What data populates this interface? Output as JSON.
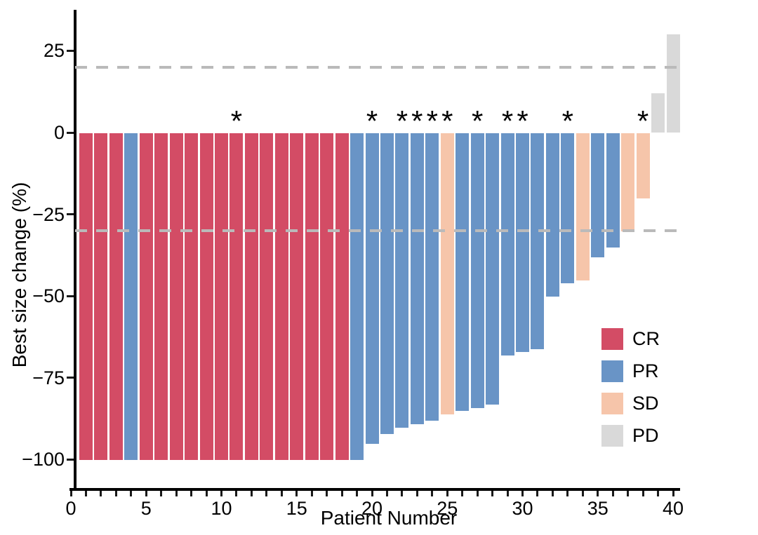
{
  "chart_data": {
    "type": "bar",
    "subtype": "waterfall",
    "title": "",
    "xlabel": "Patient Number",
    "ylabel": "Best size change (%)",
    "xlim": [
      0,
      41
    ],
    "ylim": [
      -110,
      37
    ],
    "grid": "off",
    "x_ticks": [
      0,
      5,
      10,
      15,
      20,
      25,
      30,
      35,
      40
    ],
    "x_minor_tick_step": 1,
    "y_ticks": [
      {
        "value": 25,
        "label": "25"
      },
      {
        "value": 0,
        "label": "0"
      },
      {
        "value": -25,
        "label": "−25"
      },
      {
        "value": -50,
        "label": "−50"
      },
      {
        "value": -75,
        "label": "−75"
      },
      {
        "value": -100,
        "label": "−100"
      }
    ],
    "reference_lines": [
      {
        "y": 20,
        "style": "dashed",
        "color": "#BABABA"
      },
      {
        "y": -30,
        "style": "dashed",
        "color": "#BABABA"
      }
    ],
    "legend": {
      "position": "inside-bottom-right",
      "entries": [
        {
          "label": "CR",
          "color": "#D34C65"
        },
        {
          "label": "PR",
          "color": "#6994C6"
        },
        {
          "label": "SD",
          "color": "#F6C5AA"
        },
        {
          "label": "PD",
          "color": "#D9D9D9"
        }
      ]
    },
    "annotation_symbol": "*",
    "annotation_color": "#000000",
    "patients": [
      {
        "number": 1,
        "value": -100,
        "response": "CR",
        "starred": false
      },
      {
        "number": 2,
        "value": -100,
        "response": "CR",
        "starred": false
      },
      {
        "number": 3,
        "value": -100,
        "response": "CR",
        "starred": false
      },
      {
        "number": 4,
        "value": -100,
        "response": "PR",
        "starred": false
      },
      {
        "number": 5,
        "value": -100,
        "response": "CR",
        "starred": false
      },
      {
        "number": 6,
        "value": -100,
        "response": "CR",
        "starred": false
      },
      {
        "number": 7,
        "value": -100,
        "response": "CR",
        "starred": false
      },
      {
        "number": 8,
        "value": -100,
        "response": "CR",
        "starred": false
      },
      {
        "number": 9,
        "value": -100,
        "response": "CR",
        "starred": false
      },
      {
        "number": 10,
        "value": -100,
        "response": "CR",
        "starred": false
      },
      {
        "number": 11,
        "value": -100,
        "response": "CR",
        "starred": true
      },
      {
        "number": 12,
        "value": -100,
        "response": "CR",
        "starred": false
      },
      {
        "number": 13,
        "value": -100,
        "response": "CR",
        "starred": false
      },
      {
        "number": 14,
        "value": -100,
        "response": "CR",
        "starred": false
      },
      {
        "number": 15,
        "value": -100,
        "response": "CR",
        "starred": false
      },
      {
        "number": 16,
        "value": -100,
        "response": "CR",
        "starred": false
      },
      {
        "number": 17,
        "value": -100,
        "response": "CR",
        "starred": false
      },
      {
        "number": 18,
        "value": -100,
        "response": "CR",
        "starred": false
      },
      {
        "number": 19,
        "value": -100,
        "response": "PR",
        "starred": false
      },
      {
        "number": 20,
        "value": -95,
        "response": "PR",
        "starred": true
      },
      {
        "number": 21,
        "value": -92,
        "response": "PR",
        "starred": false
      },
      {
        "number": 22,
        "value": -90,
        "response": "PR",
        "starred": true
      },
      {
        "number": 23,
        "value": -89,
        "response": "PR",
        "starred": true
      },
      {
        "number": 24,
        "value": -88,
        "response": "PR",
        "starred": true
      },
      {
        "number": 25,
        "value": -86,
        "response": "SD",
        "starred": true
      },
      {
        "number": 26,
        "value": -85,
        "response": "PR",
        "starred": false
      },
      {
        "number": 27,
        "value": -84,
        "response": "PR",
        "starred": true
      },
      {
        "number": 28,
        "value": -83,
        "response": "PR",
        "starred": false
      },
      {
        "number": 29,
        "value": -68,
        "response": "PR",
        "starred": true
      },
      {
        "number": 30,
        "value": -67,
        "response": "PR",
        "starred": true
      },
      {
        "number": 31,
        "value": -66,
        "response": "PR",
        "starred": false
      },
      {
        "number": 32,
        "value": -50,
        "response": "PR",
        "starred": false
      },
      {
        "number": 33,
        "value": -46,
        "response": "PR",
        "starred": true
      },
      {
        "number": 34,
        "value": -45,
        "response": "SD",
        "starred": false
      },
      {
        "number": 35,
        "value": -38,
        "response": "PR",
        "starred": false
      },
      {
        "number": 36,
        "value": -35,
        "response": "PR",
        "starred": false
      },
      {
        "number": 37,
        "value": -30,
        "response": "SD",
        "starred": false
      },
      {
        "number": 38,
        "value": -20,
        "response": "SD",
        "starred": true
      },
      {
        "number": 39,
        "value": 12,
        "response": "PD",
        "starred": false
      },
      {
        "number": 40,
        "value": 30,
        "response": "PD",
        "starred": false
      }
    ]
  }
}
